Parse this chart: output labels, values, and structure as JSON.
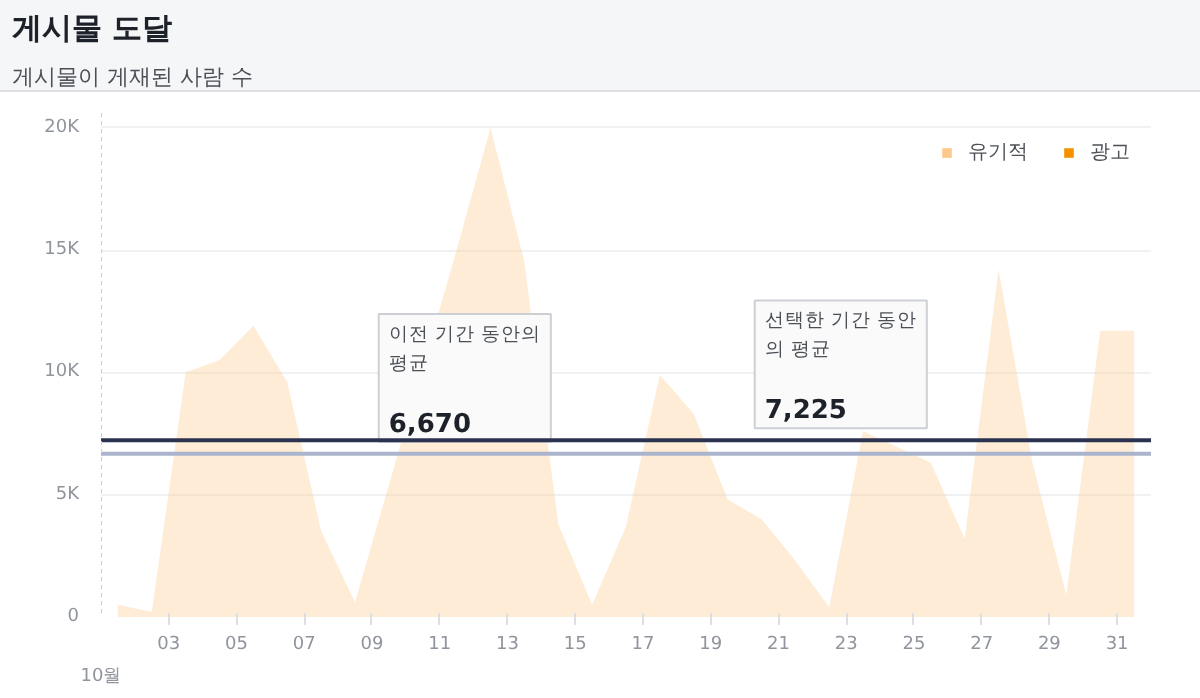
{
  "chart_data": {
    "type": "area",
    "title": "게시물 도달",
    "subtitle": "게시물이 게재된 사람 수",
    "x": [
      1.5,
      2.5,
      3.5,
      4.5,
      5.5,
      6.5,
      7.5,
      8.5,
      9.5,
      10.5,
      11.5,
      12.5,
      13.5,
      14.5,
      15.5,
      16.5,
      17.5,
      18.5,
      19.5,
      20.5,
      21.5,
      22.5,
      23.5,
      24.5,
      25.5,
      26.5,
      27.5,
      28.5,
      29.5,
      30.5,
      31.5
    ],
    "series": [
      {
        "name": "유기적",
        "color": "#fdc98a",
        "values": [
          500,
          200,
          10000,
          10500,
          11900,
          9600,
          3500,
          600,
          null,
          null,
          15000,
          20000,
          14500,
          3800,
          500,
          3700,
          9900,
          8300,
          4800,
          4000,
          2300,
          400,
          7600,
          null,
          6300,
          3200,
          14200,
          6300,
          900,
          11700,
          11700
        ]
      },
      {
        "name": "광고",
        "color": "#f59100",
        "values": [
          null,
          null,
          null,
          null,
          null,
          null,
          null,
          null,
          null,
          null,
          null,
          null,
          null,
          null,
          null,
          null,
          null,
          null,
          null,
          null,
          null,
          null,
          null,
          null,
          null,
          null,
          null,
          null,
          null,
          null,
          null
        ]
      }
    ],
    "xlim": [
      1,
      32
    ],
    "xticks": [
      {
        "value": 3,
        "label": "03"
      },
      {
        "value": 5,
        "label": "05"
      },
      {
        "value": 7,
        "label": "07"
      },
      {
        "value": 9,
        "label": "09"
      },
      {
        "value": 11,
        "label": "11"
      },
      {
        "value": 13,
        "label": "13"
      },
      {
        "value": 15,
        "label": "15"
      },
      {
        "value": 17,
        "label": "17"
      },
      {
        "value": 19,
        "label": "19"
      },
      {
        "value": 21,
        "label": "21"
      },
      {
        "value": 23,
        "label": "23"
      },
      {
        "value": 25,
        "label": "25"
      },
      {
        "value": 27,
        "label": "27"
      },
      {
        "value": 29,
        "label": "29"
      },
      {
        "value": 31,
        "label": "31"
      }
    ],
    "ylim": [
      0,
      20600
    ],
    "yticks": [
      0,
      {
        "value": 5000,
        "label": "5K"
      },
      {
        "value": 10000,
        "label": "10K"
      },
      {
        "value": 15000,
        "label": "15K"
      },
      {
        "value": 20000,
        "label": "20K"
      }
    ],
    "grid": "y",
    "legend": "top right",
    "annotations": [
      "10월"
    ],
    "ref_lines": [
      {
        "axis": "y",
        "value": 6670,
        "label": "이전 기간 동안의\n평균\n6,670",
        "color": "#aab4cc"
      },
      {
        "axis": "y",
        "value": 7225,
        "label": "선택한 기간 동안\n의 평균\n7,225",
        "color": "#2b3350"
      }
    ]
  }
}
